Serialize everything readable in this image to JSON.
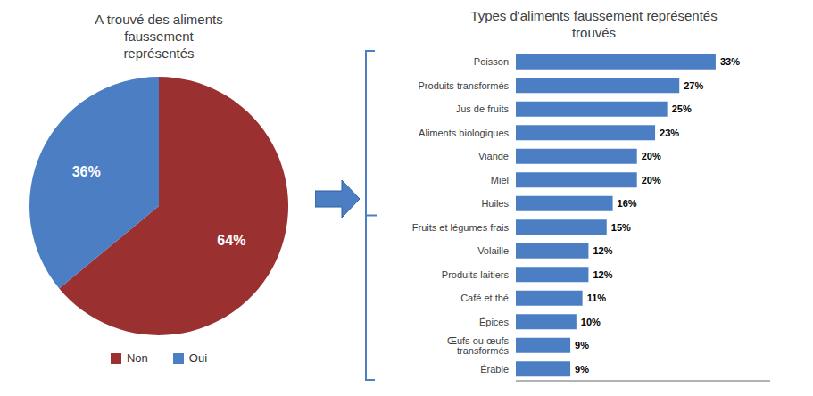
{
  "chart_data": [
    {
      "type": "pie",
      "title": "A trouvé des aliments\nfaussement\nreprésentés",
      "categories": [
        "Non",
        "Oui"
      ],
      "values": [
        64,
        36
      ],
      "value_labels": [
        "64%",
        "36%"
      ],
      "colors": [
        "#9B3030",
        "#4C7EC4"
      ],
      "data_labels": true,
      "legend": "bottom"
    },
    {
      "type": "bar",
      "orientation": "horizontal",
      "title": "Types d'aliments faussement représentés\ntrouvés",
      "categories": [
        "Poisson",
        "Produits transformés",
        "Jus de fruits",
        "Aliments biologiques",
        "Viande",
        "Miel",
        "Huiles",
        "Fruits et légumes frais",
        "Volaille",
        "Produits laitiers",
        "Café et thé",
        "Épices",
        "Œufs ou œufs transformés",
        "Érable"
      ],
      "values": [
        33,
        27,
        25,
        23,
        20,
        20,
        16,
        15,
        12,
        12,
        11,
        10,
        9,
        9
      ],
      "value_labels": [
        "33%",
        "27%",
        "25%",
        "23%",
        "20%",
        "20%",
        "16%",
        "15%",
        "12%",
        "12%",
        "11%",
        "10%",
        "9%",
        "9%"
      ],
      "color": "#4C7EC4",
      "xlim": [
        0,
        42
      ],
      "data_labels": true,
      "tick_labels": "y"
    }
  ]
}
